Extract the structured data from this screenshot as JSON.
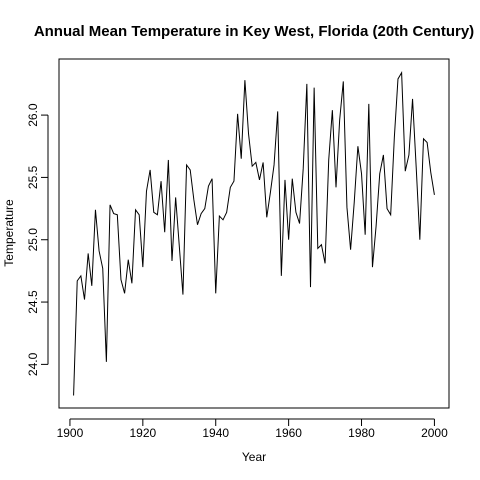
{
  "chart_data": {
    "type": "line",
    "title": "Annual Mean Temperature in Key West, Florida (20th Century)",
    "xlabel": "Year",
    "ylabel": "Temperature",
    "xlim": [
      1897,
      2004
    ],
    "ylim": [
      23.65,
      26.45
    ],
    "x_ticks": [
      1900,
      1920,
      1940,
      1960,
      1980,
      2000
    ],
    "y_ticks": [
      24.0,
      24.5,
      25.0,
      25.5,
      26.0
    ],
    "grid": false,
    "series": [
      {
        "x": [
          1901,
          1902,
          1903,
          1904,
          1905,
          1906,
          1907,
          1908,
          1909,
          1910,
          1911,
          1912,
          1913,
          1914,
          1915,
          1916,
          1917,
          1918,
          1919,
          1920,
          1921,
          1922,
          1923,
          1924,
          1925,
          1926,
          1927,
          1928,
          1929,
          1930,
          1931,
          1932,
          1933,
          1934,
          1935,
          1936,
          1937,
          1938,
          1939,
          1940,
          1941,
          1942,
          1943,
          1944,
          1945,
          1946,
          1947,
          1948,
          1949,
          1950,
          1951,
          1952,
          1953,
          1954,
          1955,
          1956,
          1957,
          1958,
          1959,
          1960,
          1961,
          1962,
          1963,
          1964,
          1965,
          1966,
          1967,
          1968,
          1969,
          1970,
          1971,
          1972,
          1973,
          1974,
          1975,
          1976,
          1977,
          1978,
          1979,
          1980,
          1981,
          1982,
          1983,
          1984,
          1985,
          1986,
          1987,
          1988,
          1989,
          1990,
          1991,
          1992,
          1993,
          1994,
          1995,
          1996,
          1997,
          1998,
          1999,
          2000
        ],
        "values": [
          23.75,
          24.67,
          24.71,
          24.52,
          24.89,
          24.63,
          25.24,
          24.91,
          24.77,
          24.02,
          25.28,
          25.21,
          25.2,
          24.68,
          24.57,
          24.84,
          24.65,
          25.24,
          25.2,
          24.78,
          25.39,
          25.56,
          25.22,
          25.2,
          25.47,
          25.06,
          25.64,
          24.83,
          25.34,
          24.95,
          24.56,
          25.6,
          25.56,
          25.32,
          25.12,
          25.21,
          25.25,
          25.43,
          25.49,
          24.57,
          25.19,
          25.16,
          25.22,
          25.42,
          25.47,
          26.01,
          25.65,
          26.28,
          25.85,
          25.59,
          25.62,
          25.48,
          25.62,
          25.18,
          25.38,
          25.6,
          26.03,
          24.71,
          25.48,
          25.0,
          25.49,
          25.22,
          25.13,
          25.57,
          26.25,
          24.62,
          26.22,
          24.93,
          24.96,
          24.81,
          25.64,
          26.04,
          25.42,
          25.96,
          26.27,
          25.26,
          24.92,
          25.3,
          25.75,
          25.53,
          25.04,
          26.09,
          24.78,
          25.11,
          25.53,
          25.68,
          25.25,
          25.2,
          25.82,
          26.29,
          26.34,
          25.55,
          25.68,
          26.13,
          25.58,
          25.0,
          25.81,
          25.78,
          25.54,
          25.36
        ]
      }
    ]
  }
}
